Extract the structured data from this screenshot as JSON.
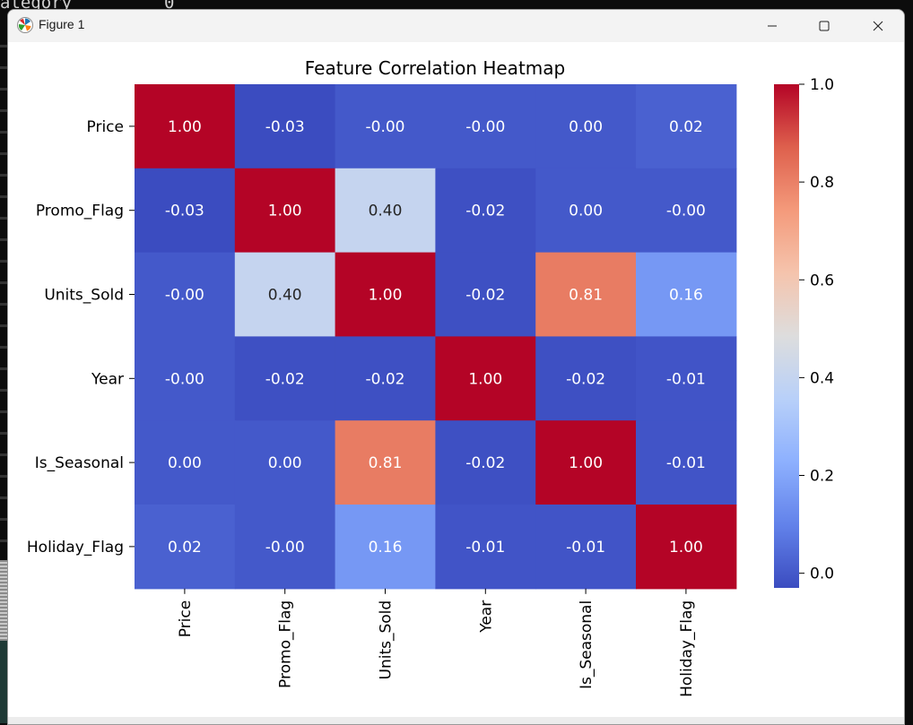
{
  "window": {
    "title": "Figure 1"
  },
  "background": {
    "terminal_text": "ategory         0"
  },
  "chart_data": {
    "type": "heatmap",
    "title": "Feature Correlation Heatmap",
    "rows": [
      "Price",
      "Promo_Flag",
      "Units_Sold",
      "Year",
      "Is_Seasonal",
      "Holiday_Flag"
    ],
    "columns": [
      "Price",
      "Promo_Flag",
      "Units_Sold",
      "Year",
      "Is_Seasonal",
      "Holiday_Flag"
    ],
    "values": [
      [
        1.0,
        -0.03,
        -0.0,
        -0.0,
        0.0,
        0.02
      ],
      [
        -0.03,
        1.0,
        0.4,
        -0.02,
        0.0,
        -0.0
      ],
      [
        -0.0,
        0.4,
        1.0,
        -0.02,
        0.81,
        0.16
      ],
      [
        -0.0,
        -0.02,
        -0.02,
        1.0,
        -0.02,
        -0.01
      ],
      [
        0.0,
        0.0,
        0.81,
        -0.02,
        1.0,
        -0.01
      ],
      [
        0.02,
        -0.0,
        0.16,
        -0.01,
        -0.01,
        1.0
      ]
    ],
    "annotations": [
      [
        "1.00",
        "-0.03",
        "-0.00",
        "-0.00",
        "0.00",
        "0.02"
      ],
      [
        "-0.03",
        "1.00",
        "0.40",
        "-0.02",
        "0.00",
        "-0.00"
      ],
      [
        "-0.00",
        "0.40",
        "1.00",
        "-0.02",
        "0.81",
        "0.16"
      ],
      [
        "-0.00",
        "-0.02",
        "-0.02",
        "1.00",
        "-0.02",
        "-0.01"
      ],
      [
        "0.00",
        "0.00",
        "0.81",
        "-0.02",
        "1.00",
        "-0.01"
      ],
      [
        "0.02",
        "-0.00",
        "0.16",
        "-0.01",
        "-0.01",
        "1.00"
      ]
    ],
    "colormap": "coolwarm",
    "colorbar": {
      "range": [
        -0.03,
        1.0
      ],
      "ticks": [
        0.0,
        0.2,
        0.4,
        0.6,
        0.8,
        1.0
      ],
      "tick_labels": [
        "0.0",
        "0.2",
        "0.4",
        "0.6",
        "0.8",
        "1.0"
      ]
    },
    "grid": false,
    "legend": "colorbar-right"
  }
}
